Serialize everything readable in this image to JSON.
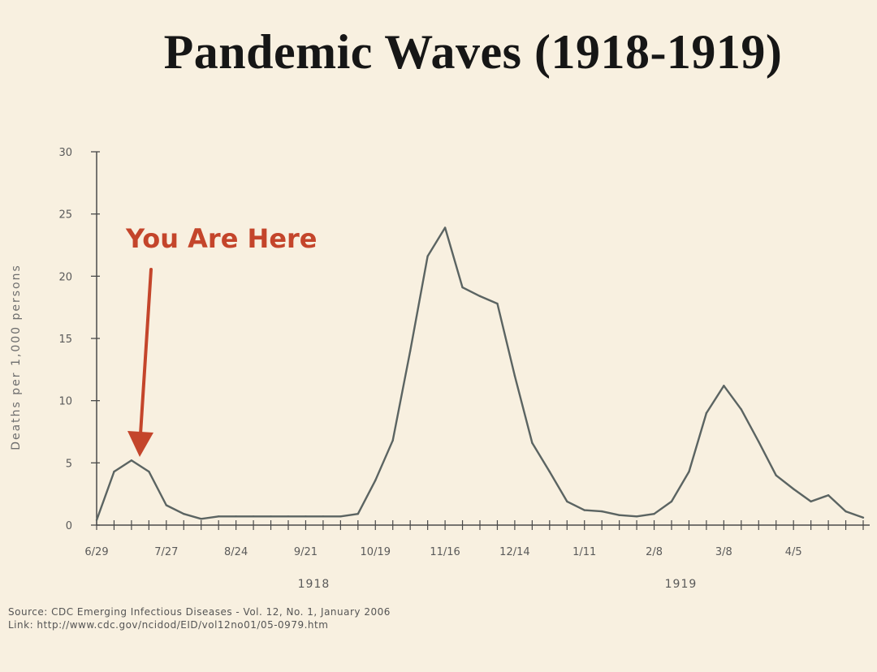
{
  "chart_data": {
    "type": "line",
    "title": "Pandemic Waves (1918-1919)",
    "ylabel": "Deaths per 1,000 persons",
    "xlabel": "",
    "ylim": [
      0,
      30
    ],
    "y_ticks": [
      "0",
      "5",
      "10",
      "15",
      "20",
      "25",
      "30"
    ],
    "x_tick_labels": [
      "6/29",
      "7/27",
      "8/24",
      "9/21",
      "10/19",
      "11/16",
      "12/14",
      "1/11",
      "2/8",
      "3/8",
      "4/5"
    ],
    "years": [
      {
        "label": "1918",
        "under": "8/24-10/19"
      },
      {
        "label": "1919",
        "under": "2/8-3/8"
      }
    ],
    "x_unit": "weeks starting 6/29/1918",
    "series": [
      {
        "name": "",
        "x": [
          0,
          1,
          2,
          3,
          4,
          5,
          6,
          7,
          8,
          9,
          10,
          11,
          12,
          13,
          14,
          15,
          16,
          17,
          18,
          19,
          20,
          21,
          22,
          23,
          24,
          25,
          26,
          27,
          28,
          29,
          30,
          31,
          32,
          33,
          34,
          35,
          36,
          37,
          38,
          39,
          40,
          41,
          42,
          43,
          44
        ],
        "values": [
          0.4,
          4.3,
          5.2,
          4.3,
          1.6,
          0.9,
          0.5,
          0.7,
          0.7,
          0.7,
          0.7,
          0.7,
          0.7,
          0.7,
          0.7,
          0.9,
          3.6,
          6.8,
          14.0,
          21.6,
          23.9,
          19.1,
          18.4,
          17.8,
          12.0,
          6.6,
          4.3,
          1.9,
          1.2,
          1.1,
          0.8,
          0.7,
          0.9,
          1.9,
          4.3,
          9.0,
          11.2,
          9.3,
          6.7,
          4.0,
          2.9,
          1.9,
          2.4,
          1.1,
          0.6
        ]
      }
    ],
    "annotation": {
      "text": "You Are Here",
      "target_x": 2,
      "target_y": 5.2
    },
    "grid": false,
    "colors": {
      "line": "#5b6462",
      "axis": "#4a4a4a",
      "annotation": "#c4452b",
      "background": "#f8f0e0"
    }
  },
  "source": {
    "line1": "Source: CDC Emerging Infectious Diseases - Vol. 12, No. 1, January 2006",
    "line2": "Link: http://www.cdc.gov/ncidod/EID/vol12no01/05-0979.htm"
  }
}
